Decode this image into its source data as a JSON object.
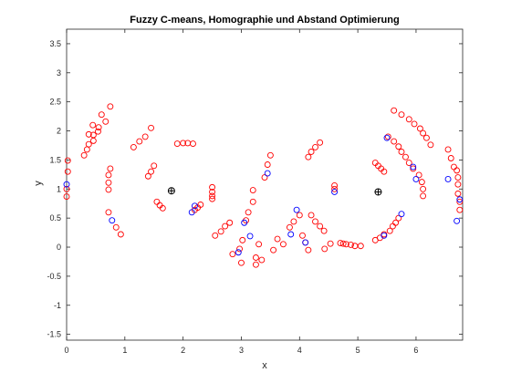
{
  "chart_data": {
    "type": "scatter",
    "title": "Fuzzy C-means, Homographie und Abstand Optimierung",
    "xlabel": "x",
    "ylabel": "y",
    "xlim": [
      0,
      6.8
    ],
    "ylim": [
      -1.6,
      3.75
    ],
    "xticks": [
      0,
      1,
      2,
      3,
      4,
      5,
      6
    ],
    "yticks": [
      -1.5,
      -1,
      -0.5,
      0,
      0.5,
      1,
      1.5,
      2,
      2.5,
      3,
      3.5
    ],
    "grid": false,
    "colors": {
      "red_points": "#ff0000",
      "blue_points": "#0000ff",
      "centers": "#000000",
      "axes": "#262626"
    },
    "series": [
      {
        "marker": "circle",
        "color": "#ff0000",
        "points": [
          [
            0.02,
            1.49
          ],
          [
            0.02,
            1.3
          ],
          [
            0.0,
            1.0
          ],
          [
            0.0,
            0.87
          ],
          [
            0.3,
            1.58
          ],
          [
            0.35,
            1.68
          ],
          [
            0.38,
            1.77
          ],
          [
            0.38,
            1.94
          ],
          [
            0.46,
            1.83
          ],
          [
            0.46,
            1.93
          ],
          [
            0.45,
            2.1
          ],
          [
            0.54,
            1.99
          ],
          [
            0.55,
            2.06
          ],
          [
            0.6,
            2.28
          ],
          [
            0.67,
            2.16
          ],
          [
            0.75,
            2.42
          ],
          [
            0.72,
            1.24
          ],
          [
            0.72,
            1.11
          ],
          [
            0.72,
            0.99
          ],
          [
            0.75,
            1.35
          ],
          [
            0.72,
            0.6
          ],
          [
            0.85,
            0.34
          ],
          [
            0.93,
            0.22
          ],
          [
            1.15,
            1.72
          ],
          [
            1.25,
            1.82
          ],
          [
            1.35,
            1.9
          ],
          [
            1.45,
            2.05
          ],
          [
            1.4,
            1.22
          ],
          [
            1.45,
            1.3
          ],
          [
            1.5,
            1.4
          ],
          [
            1.55,
            0.78
          ],
          [
            1.6,
            0.72
          ],
          [
            1.65,
            0.67
          ],
          [
            1.9,
            1.78
          ],
          [
            2.0,
            1.79
          ],
          [
            2.08,
            1.79
          ],
          [
            2.17,
            1.78
          ],
          [
            2.2,
            0.64
          ],
          [
            2.25,
            0.68
          ],
          [
            2.3,
            0.73
          ],
          [
            2.5,
            1.03
          ],
          [
            2.5,
            0.95
          ],
          [
            2.5,
            0.88
          ],
          [
            2.5,
            0.83
          ],
          [
            2.55,
            0.2
          ],
          [
            2.65,
            0.27
          ],
          [
            2.72,
            0.36
          ],
          [
            2.8,
            0.42
          ],
          [
            2.85,
            -0.12
          ],
          [
            2.97,
            -0.03
          ],
          [
            3.0,
            -0.27
          ],
          [
            3.02,
            0.12
          ],
          [
            3.08,
            0.46
          ],
          [
            3.12,
            0.6
          ],
          [
            3.2,
            0.78
          ],
          [
            3.2,
            0.98
          ],
          [
            3.25,
            -0.18
          ],
          [
            3.25,
            -0.3
          ],
          [
            3.3,
            0.05
          ],
          [
            3.35,
            -0.22
          ],
          [
            3.4,
            1.2
          ],
          [
            3.45,
            1.42
          ],
          [
            3.5,
            1.58
          ],
          [
            3.55,
            -0.05
          ],
          [
            3.62,
            0.14
          ],
          [
            3.72,
            0.05
          ],
          [
            3.83,
            0.34
          ],
          [
            3.9,
            0.44
          ],
          [
            4.0,
            0.55
          ],
          [
            4.05,
            0.2
          ],
          [
            4.1,
            0.08
          ],
          [
            4.15,
            -0.05
          ],
          [
            4.2,
            0.55
          ],
          [
            4.27,
            0.44
          ],
          [
            4.35,
            0.36
          ],
          [
            4.42,
            0.28
          ],
          [
            4.43,
            -0.03
          ],
          [
            4.53,
            0.06
          ],
          [
            4.15,
            1.55
          ],
          [
            4.2,
            1.64
          ],
          [
            4.27,
            1.72
          ],
          [
            4.35,
            1.8
          ],
          [
            4.6,
            1.06
          ],
          [
            4.6,
            1.0
          ],
          [
            4.7,
            0.07
          ],
          [
            4.75,
            0.06
          ],
          [
            4.8,
            0.05
          ],
          [
            4.88,
            0.04
          ],
          [
            4.95,
            0.02
          ],
          [
            5.05,
            0.02
          ],
          [
            5.3,
            0.12
          ],
          [
            5.38,
            0.16
          ],
          [
            5.45,
            0.22
          ],
          [
            5.55,
            0.28
          ],
          [
            5.6,
            0.36
          ],
          [
            5.65,
            0.42
          ],
          [
            5.7,
            0.5
          ],
          [
            5.3,
            1.45
          ],
          [
            5.35,
            1.4
          ],
          [
            5.4,
            1.35
          ],
          [
            5.45,
            1.3
          ],
          [
            5.52,
            1.9
          ],
          [
            5.62,
            1.82
          ],
          [
            5.7,
            1.73
          ],
          [
            5.75,
            1.64
          ],
          [
            5.82,
            1.55
          ],
          [
            5.88,
            1.45
          ],
          [
            5.95,
            1.35
          ],
          [
            6.05,
            1.24
          ],
          [
            6.1,
            1.12
          ],
          [
            6.12,
            1.0
          ],
          [
            6.12,
            0.88
          ],
          [
            5.62,
            2.35
          ],
          [
            5.75,
            2.28
          ],
          [
            5.88,
            2.2
          ],
          [
            5.97,
            2.12
          ],
          [
            6.07,
            2.04
          ],
          [
            6.12,
            1.96
          ],
          [
            6.18,
            1.88
          ],
          [
            6.25,
            1.76
          ],
          [
            6.55,
            1.68
          ],
          [
            6.6,
            1.53
          ],
          [
            6.65,
            1.38
          ],
          [
            6.7,
            1.32
          ],
          [
            6.72,
            1.2
          ],
          [
            6.72,
            1.08
          ],
          [
            6.72,
            0.92
          ],
          [
            6.75,
            0.78
          ],
          [
            6.75,
            0.64
          ]
        ]
      },
      {
        "marker": "circle",
        "color": "#0000ff",
        "points": [
          [
            0.0,
            1.08
          ],
          [
            0.78,
            0.46
          ],
          [
            2.15,
            0.6
          ],
          [
            2.2,
            0.71
          ],
          [
            2.95,
            -0.09
          ],
          [
            3.05,
            0.42
          ],
          [
            3.15,
            0.19
          ],
          [
            3.45,
            1.27
          ],
          [
            3.85,
            0.22
          ],
          [
            3.95,
            0.64
          ],
          [
            4.1,
            0.08
          ],
          [
            4.6,
            0.95
          ],
          [
            5.45,
            0.2
          ],
          [
            5.5,
            1.88
          ],
          [
            5.75,
            0.57
          ],
          [
            5.95,
            1.38
          ],
          [
            6.0,
            1.17
          ],
          [
            6.55,
            1.17
          ],
          [
            6.7,
            0.45
          ],
          [
            6.75,
            0.82
          ]
        ]
      },
      {
        "marker": "circle-plus",
        "color": "#000000",
        "points": [
          [
            1.8,
            0.97
          ],
          [
            5.35,
            0.95
          ]
        ]
      }
    ]
  }
}
